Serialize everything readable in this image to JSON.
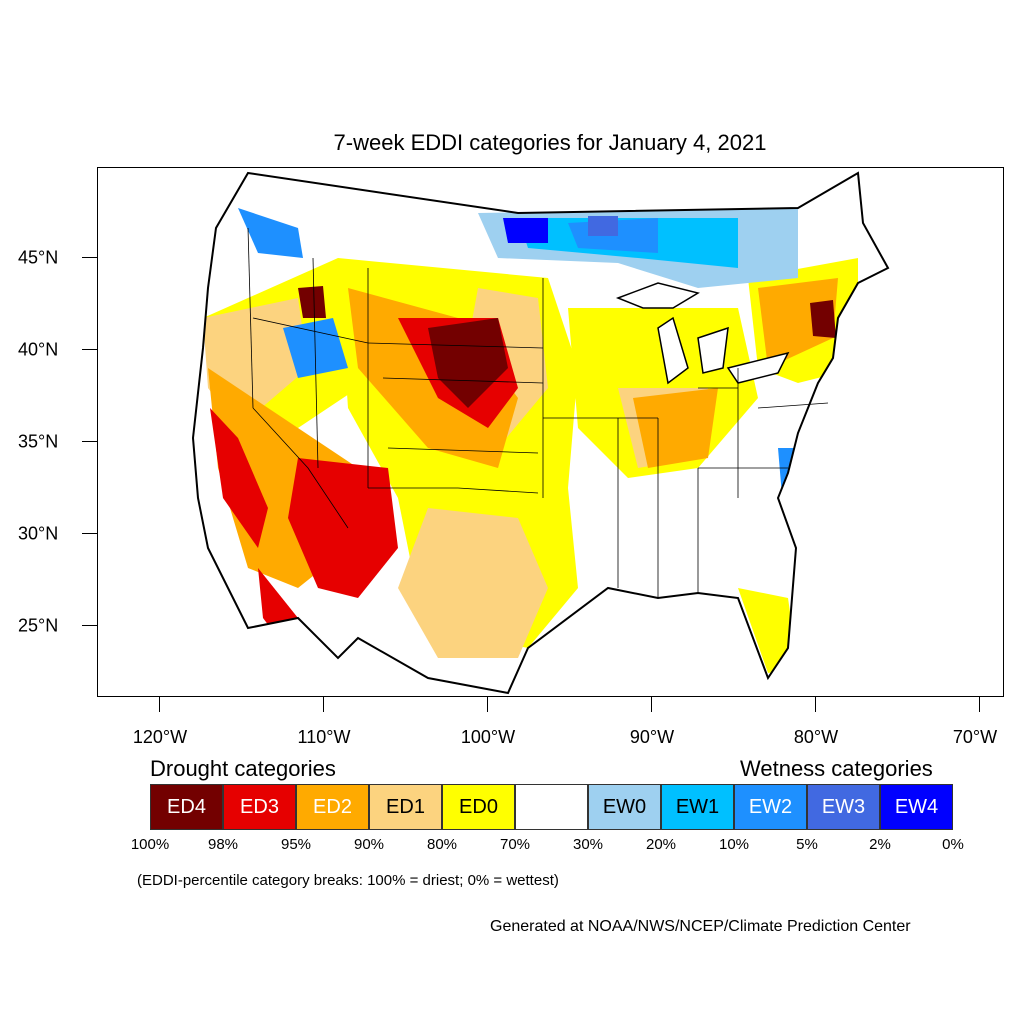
{
  "title": "7-week EDDI categories for January 4, 2021",
  "map": {
    "lat_labels": [
      "45°N",
      "40°N",
      "35°N",
      "30°N",
      "25°N"
    ],
    "lon_labels": [
      "120°W",
      "110°W",
      "100°W",
      "90°W",
      "80°W",
      "70°W"
    ]
  },
  "legend": {
    "drought_heading": "Drought categories",
    "wetness_heading": "Wetness categories",
    "categories": [
      {
        "label": "ED4",
        "color": "#730000",
        "text_color": "#ffffff"
      },
      {
        "label": "ED3",
        "color": "#e60000",
        "text_color": "#ffffff"
      },
      {
        "label": "ED2",
        "color": "#ffaa00",
        "text_color": "#ffffff"
      },
      {
        "label": "ED1",
        "color": "#fcd37f",
        "text_color": "#000000"
      },
      {
        "label": "ED0",
        "color": "#ffff00",
        "text_color": "#000000"
      },
      {
        "label": "",
        "color": "#ffffff",
        "text_color": "#000000"
      },
      {
        "label": "EW0",
        "color": "#9ed0f0",
        "text_color": "#000000"
      },
      {
        "label": "EW1",
        "color": "#00c0ff",
        "text_color": "#000000"
      },
      {
        "label": "EW2",
        "color": "#1e90ff",
        "text_color": "#ffffff"
      },
      {
        "label": "EW3",
        "color": "#4169e1",
        "text_color": "#ffffff"
      },
      {
        "label": "EW4",
        "color": "#0000ff",
        "text_color": "#ffffff"
      }
    ],
    "breaks": [
      "100%",
      "98%",
      "95%",
      "90%",
      "80%",
      "70%",
      "30%",
      "20%",
      "10%",
      "5%",
      "2%",
      "0%"
    ]
  },
  "note": "(EDDI-percentile category breaks: 100% = driest; 0% = wettest)",
  "credit": "Generated at NOAA/NWS/NCEP/Climate Prediction Center"
}
